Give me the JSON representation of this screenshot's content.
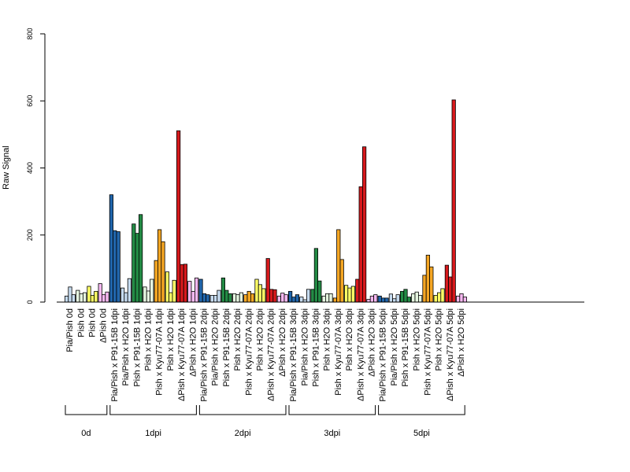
{
  "chart_data": {
    "type": "bar",
    "title": "",
    "xlabel": "",
    "ylabel": "Raw Signal",
    "ylim": [
      0,
      800
    ],
    "yticks": [
      0,
      200,
      400,
      600,
      800
    ],
    "grid": false,
    "legend": "none",
    "categories": [
      {
        "label": "Pia/Pish 0d",
        "color": "#c6dbef",
        "values": [
          18,
          45,
          22
        ]
      },
      {
        "label": "Pish 0d",
        "color": "#e5f5e0",
        "values": [
          35,
          25,
          28
        ]
      },
      {
        "label": "Pish 0d",
        "color": "#ffff66",
        "values": [
          47,
          20,
          32
        ]
      },
      {
        "label": "ΔPish 0d",
        "color": "#f5b8f0",
        "values": [
          55,
          22,
          30
        ]
      },
      {
        "label": "Pia/Pish x P91-15B 1dpi",
        "color": "#2166ac",
        "values": [
          320,
          213,
          210
        ]
      },
      {
        "label": "Pia/Pish x H2O 1dpi",
        "color": "#c6dbef",
        "values": [
          42,
          28,
          70
        ]
      },
      {
        "label": "Pish x P91-15B 1dpi",
        "color": "#238b45",
        "values": [
          233,
          205,
          261
        ]
      },
      {
        "label": "Pish x H2O 1dpi",
        "color": "#e5f5e0",
        "values": [
          45,
          33,
          68
        ]
      },
      {
        "label": "Pish x Kyu77-07A 1dpi",
        "color": "#f5a623",
        "values": [
          124,
          216,
          180
        ]
      },
      {
        "label": "Pish x H2O 1dpi",
        "color": "#ffff66",
        "values": [
          90,
          28,
          65
        ]
      },
      {
        "label": "ΔPish x Kyu77-07A 1dpi",
        "color": "#d7191c",
        "values": [
          511,
          112,
          113
        ]
      },
      {
        "label": "ΔPish x H2O 1dpi",
        "color": "#f5b8f0",
        "values": [
          62,
          32,
          72
        ]
      },
      {
        "label": "Pia/Pish x P91-15B 2dpi",
        "color": "#2166ac",
        "values": [
          68,
          25,
          22
        ]
      },
      {
        "label": "Pia/Pish x H2O 2dpi",
        "color": "#c6dbef",
        "values": [
          20,
          20,
          35
        ]
      },
      {
        "label": "Pish x P91-15B 2dpi",
        "color": "#238b45",
        "values": [
          72,
          35,
          25
        ]
      },
      {
        "label": "Pish x H2O 2dpi",
        "color": "#e5f5e0",
        "values": [
          25,
          22,
          28
        ]
      },
      {
        "label": "Pish x Kyu77-07A 2dpi",
        "color": "#f5a623",
        "values": [
          22,
          32,
          25
        ]
      },
      {
        "label": "Pish x H2O 2dpi",
        "color": "#ffff66",
        "values": [
          68,
          52,
          40
        ]
      },
      {
        "label": "ΔPish x Kyu77-07A 2dpi",
        "color": "#d7191c",
        "values": [
          130,
          38,
          37
        ]
      },
      {
        "label": "ΔPish x H2O 2dpi",
        "color": "#f5b8f0",
        "values": [
          18,
          27,
          22
        ]
      },
      {
        "label": "Pia/Pish x P91-15B 3dpi",
        "color": "#2166ac",
        "values": [
          32,
          15,
          22
        ]
      },
      {
        "label": "Pia/Pish x H2O 3dpi",
        "color": "#c6dbef",
        "values": [
          15,
          7,
          38
        ]
      },
      {
        "label": "Pish x P91-15B 3dpi",
        "color": "#238b45",
        "values": [
          38,
          160,
          63
        ]
      },
      {
        "label": "Pish x H2O 3dpi",
        "color": "#e5f5e0",
        "values": [
          18,
          25,
          25
        ]
      },
      {
        "label": "Pish x Kyu77-07A 3dpi",
        "color": "#f5a623",
        "values": [
          12,
          216,
          127
        ]
      },
      {
        "label": "Pish x H2O 3dpi",
        "color": "#ffff66",
        "values": [
          50,
          42,
          47
        ]
      },
      {
        "label": "ΔPish x Kyu77-07A 3dpi",
        "color": "#d7191c",
        "values": [
          68,
          344,
          463
        ]
      },
      {
        "label": "ΔPish x H2O 3dpi",
        "color": "#f5b8f0",
        "values": [
          8,
          18,
          22
        ]
      },
      {
        "label": "Pia/Pish x P91-15B 5dpi",
        "color": "#2166ac",
        "values": [
          18,
          12,
          12
        ]
      },
      {
        "label": "Pia/Pish x H2O 5dpi",
        "color": "#c6dbef",
        "values": [
          24,
          10,
          22
        ]
      },
      {
        "label": "Pish x P91-15B 5dpi",
        "color": "#238b45",
        "values": [
          32,
          38,
          15
        ]
      },
      {
        "label": "Pish x H2O 5dpi",
        "color": "#e5f5e0",
        "values": [
          25,
          30,
          20
        ]
      },
      {
        "label": "Pish x Kyu77-07A 5dpi",
        "color": "#f5a623",
        "values": [
          80,
          140,
          105
        ]
      },
      {
        "label": "Pish x H2O 5dpi",
        "color": "#ffff66",
        "values": [
          20,
          28,
          40
        ]
      },
      {
        "label": "ΔPish x Kyu77-07A 5dpi",
        "color": "#d7191c",
        "values": [
          110,
          75,
          603
        ]
      },
      {
        "label": "ΔPish x H2O 5dpi",
        "color": "#f5b8f0",
        "values": [
          18,
          25,
          15
        ]
      }
    ],
    "groups": [
      {
        "label": "0d",
        "start": 0,
        "end": 3
      },
      {
        "label": "1dpi",
        "start": 4,
        "end": 11
      },
      {
        "label": "2dpi",
        "start": 12,
        "end": 19
      },
      {
        "label": "3dpi",
        "start": 20,
        "end": 27
      },
      {
        "label": "5dpi",
        "start": 28,
        "end": 35
      }
    ]
  }
}
